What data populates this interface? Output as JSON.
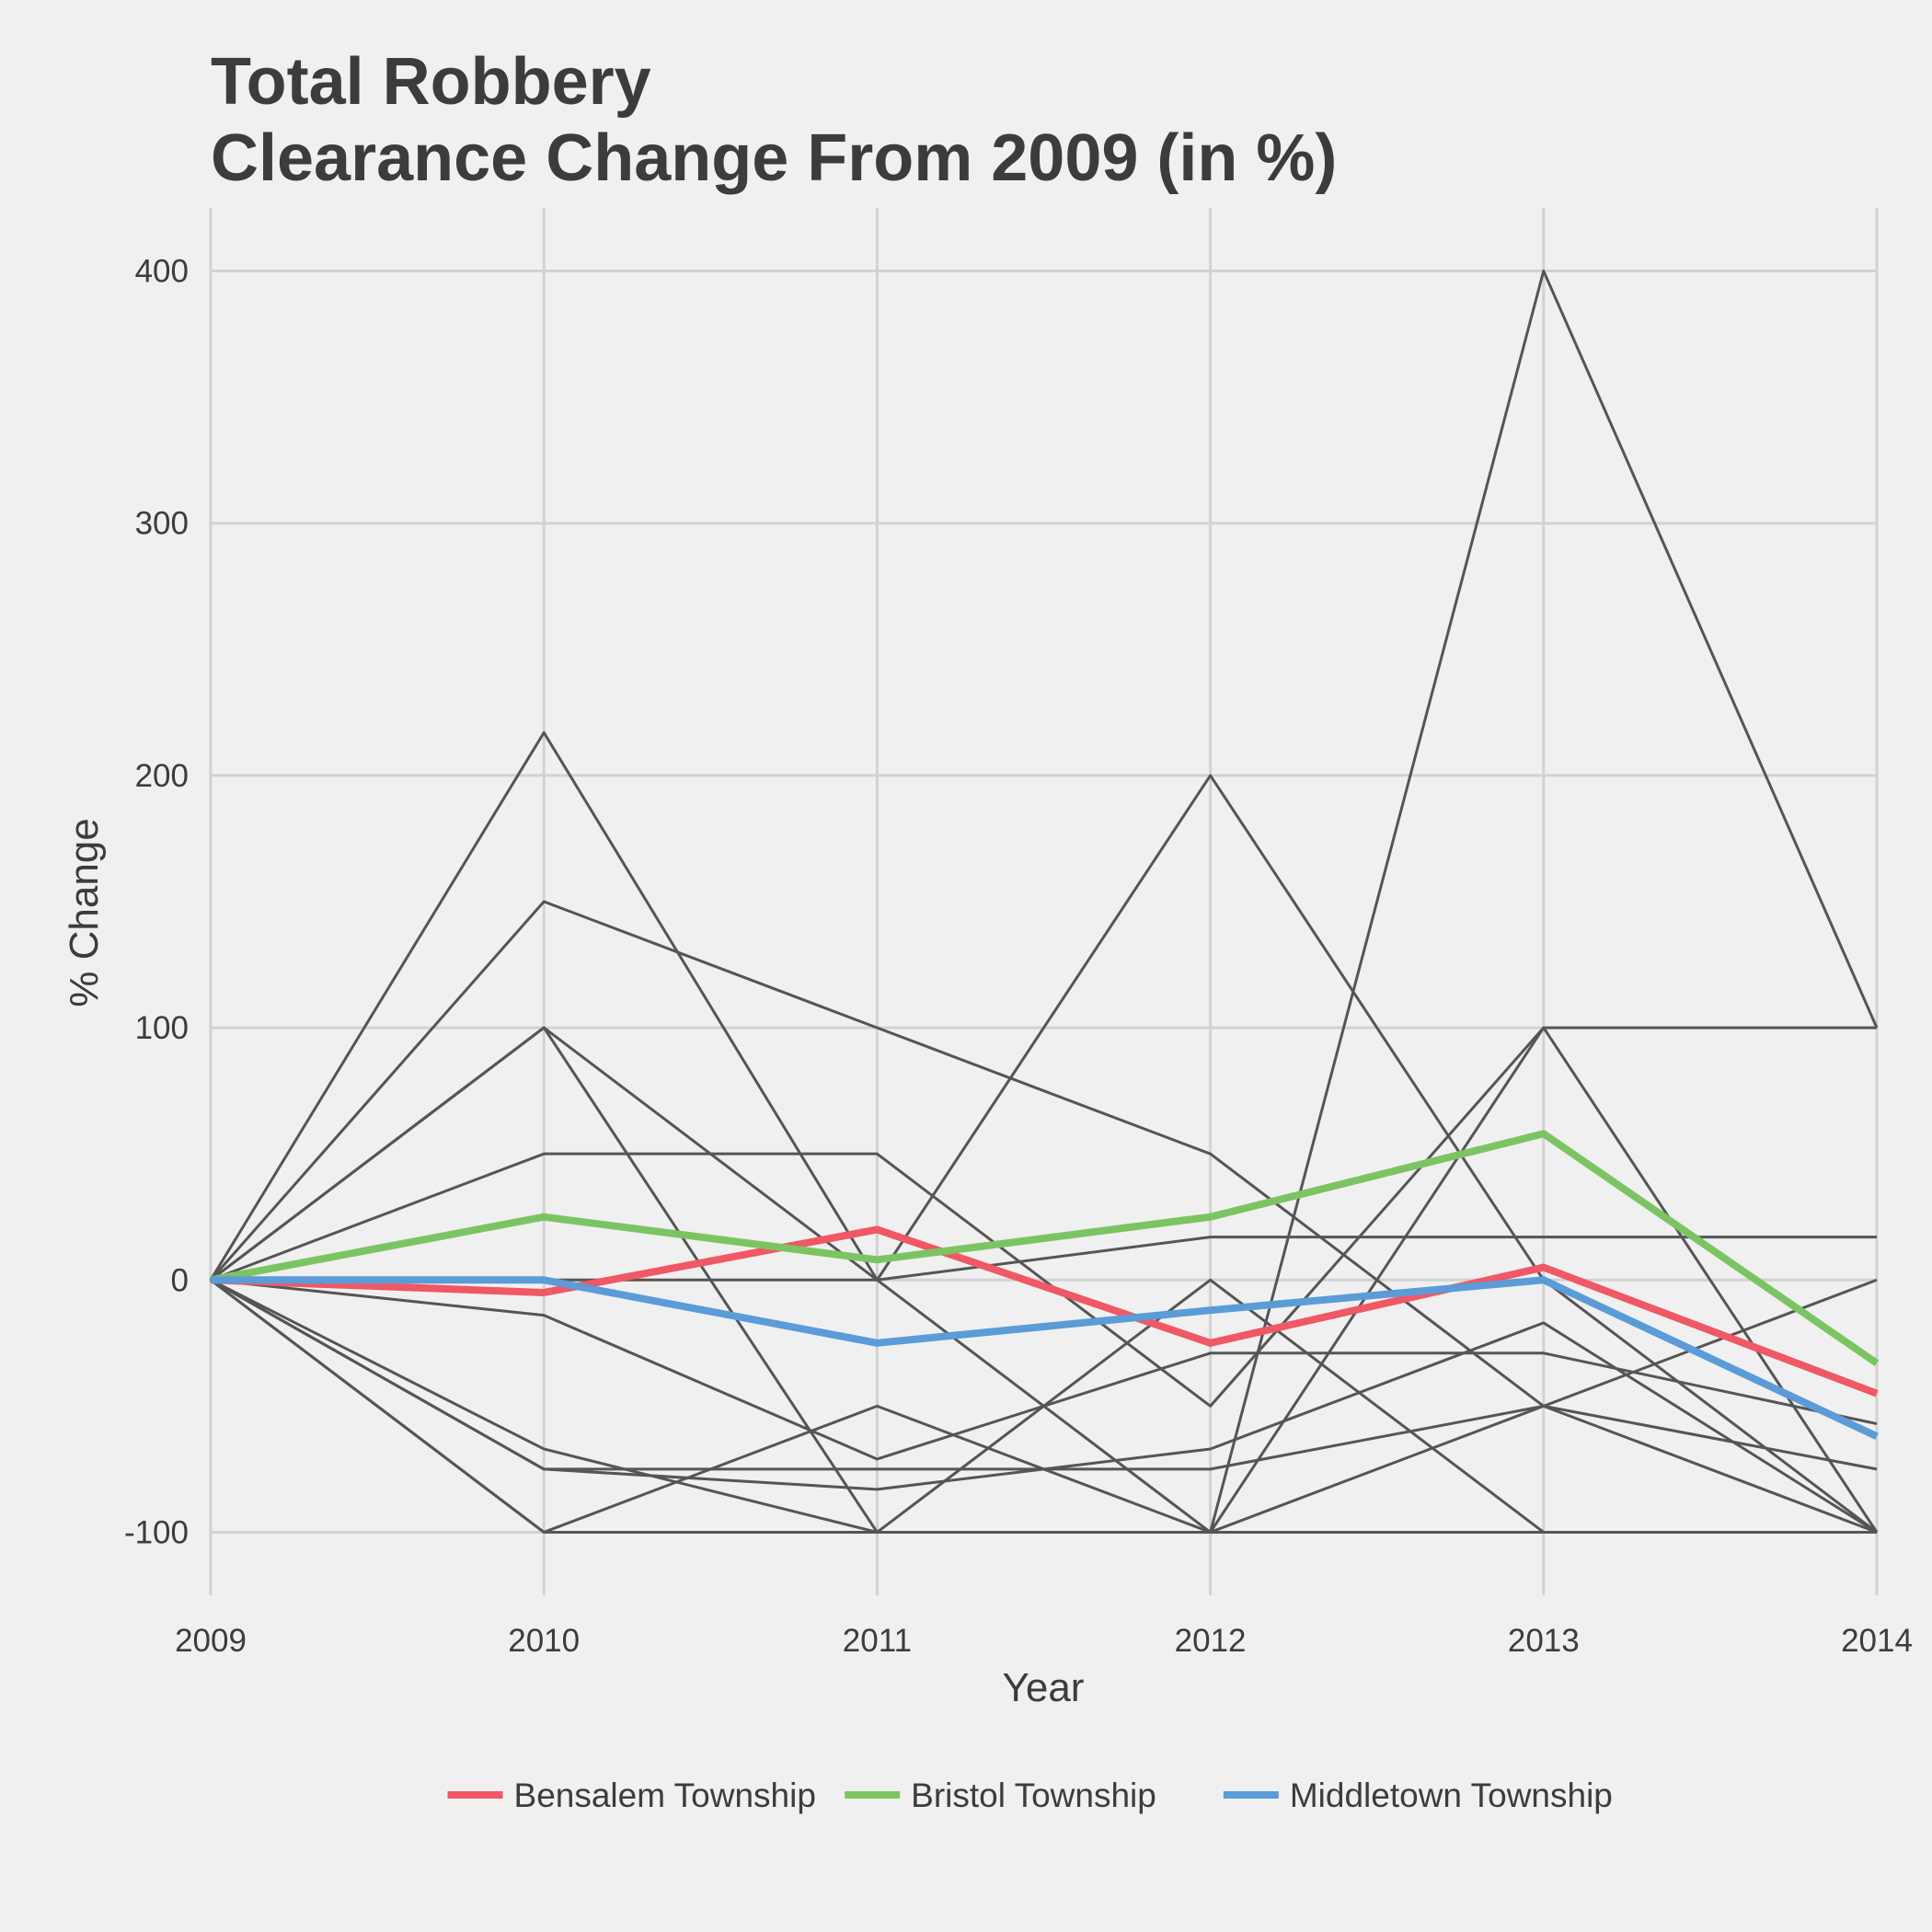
{
  "chart_data": {
    "type": "line",
    "title": "Total Robbery",
    "subtitle": "Clearance Change From 2009 (in %)",
    "xlabel": "Year",
    "ylabel": "% Change",
    "x": [
      2009,
      2010,
      2011,
      2012,
      2013,
      2014
    ],
    "x_tick_labels": [
      "2009",
      "2010",
      "2011",
      "2012",
      "2013",
      "2014"
    ],
    "y_ticks": [
      -100,
      0,
      100,
      200,
      300,
      400
    ],
    "y_tick_labels": [
      "-100",
      "0",
      "100",
      "200",
      "300",
      "400"
    ],
    "ylim": [
      -125,
      425
    ],
    "grid": true,
    "legend_position": "bottom",
    "highlighted_series": [
      {
        "name": "Bensalem Township",
        "color": "#ef5864",
        "values": [
          0,
          -5,
          20,
          -25,
          5,
          -45
        ]
      },
      {
        "name": "Bristol Township",
        "color": "#7cc463",
        "values": [
          0,
          25,
          8,
          25,
          58,
          -33
        ]
      },
      {
        "name": "Middletown Township",
        "color": "#5b9bd8",
        "values": [
          0,
          0,
          -25,
          -12,
          0,
          -62
        ]
      }
    ],
    "background_series_color": "#555555",
    "background_series": [
      {
        "values": [
          0,
          217,
          0,
          -100,
          400,
          100
        ]
      },
      {
        "values": [
          0,
          150,
          100,
          50,
          -50,
          -100
        ]
      },
      {
        "values": [
          0,
          100,
          0,
          200,
          0,
          -100
        ]
      },
      {
        "values": [
          0,
          100,
          -100,
          -100,
          100,
          100
        ]
      },
      {
        "values": [
          0,
          50,
          50,
          -50,
          100,
          -100
        ]
      },
      {
        "values": [
          0,
          0,
          0,
          17,
          17,
          17
        ]
      },
      {
        "values": [
          0,
          -14,
          -71,
          -29,
          -29,
          -57
        ]
      },
      {
        "values": [
          0,
          -67,
          -100,
          0,
          -100,
          -100
        ]
      },
      {
        "values": [
          0,
          -75,
          -75,
          -75,
          -50,
          -75
        ]
      },
      {
        "values": [
          0,
          -75,
          -83,
          -67,
          -17,
          -100
        ]
      },
      {
        "values": [
          0,
          -100,
          -50,
          -100,
          -50,
          0
        ]
      },
      {
        "values": [
          0,
          -100,
          -100,
          -100,
          -100,
          -100
        ]
      }
    ]
  }
}
